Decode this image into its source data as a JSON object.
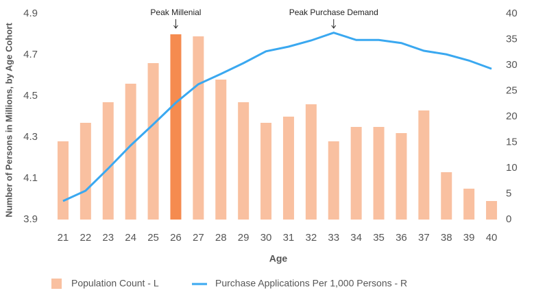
{
  "chart_data": {
    "type": "bar_line",
    "x_label": "Age",
    "y_label": "Number of Persons in Millions, by Age Cohort",
    "categories": [
      "21",
      "22",
      "23",
      "24",
      "25",
      "26",
      "27",
      "28",
      "29",
      "30",
      "31",
      "32",
      "33",
      "34",
      "35",
      "36",
      "37",
      "38",
      "39",
      "40"
    ],
    "series": [
      {
        "name": "Population Count - L",
        "type": "bar",
        "color": "#f9c0a0",
        "axis": "y",
        "values": [
          4.28,
          4.37,
          4.47,
          4.56,
          4.66,
          4.8,
          4.79,
          4.58,
          4.47,
          4.37,
          4.4,
          4.46,
          4.28,
          4.35,
          4.35,
          4.32,
          4.43,
          4.13,
          4.05,
          3.99
        ]
      },
      {
        "name": "Purchase Applications Per 1,000 Persons - R",
        "type": "line",
        "color": "#3aa8f0",
        "axis": "y2",
        "values": [
          3.6,
          5.6,
          9.9,
          14.4,
          18.5,
          22.7,
          26.3,
          28.3,
          30.4,
          32.7,
          33.6,
          34.8,
          36.3,
          34.9,
          34.9,
          34.3,
          32.8,
          32.1,
          30.9,
          29.3
        ]
      }
    ],
    "highlight": {
      "category": "26",
      "color": "#f58b4f"
    },
    "annotations": [
      {
        "text": "Peak Millenial",
        "category": "26"
      },
      {
        "text": "Peak Purchase Demand",
        "category": "33"
      }
    ],
    "ylim": [
      3.9,
      4.9
    ],
    "yticks": [
      3.9,
      4.1,
      4.3,
      4.5,
      4.7,
      4.9
    ],
    "y2lim": [
      0,
      40
    ],
    "y2ticks": [
      0,
      5,
      10,
      15,
      20,
      25,
      30,
      35,
      40
    ],
    "legend": "bottom"
  }
}
